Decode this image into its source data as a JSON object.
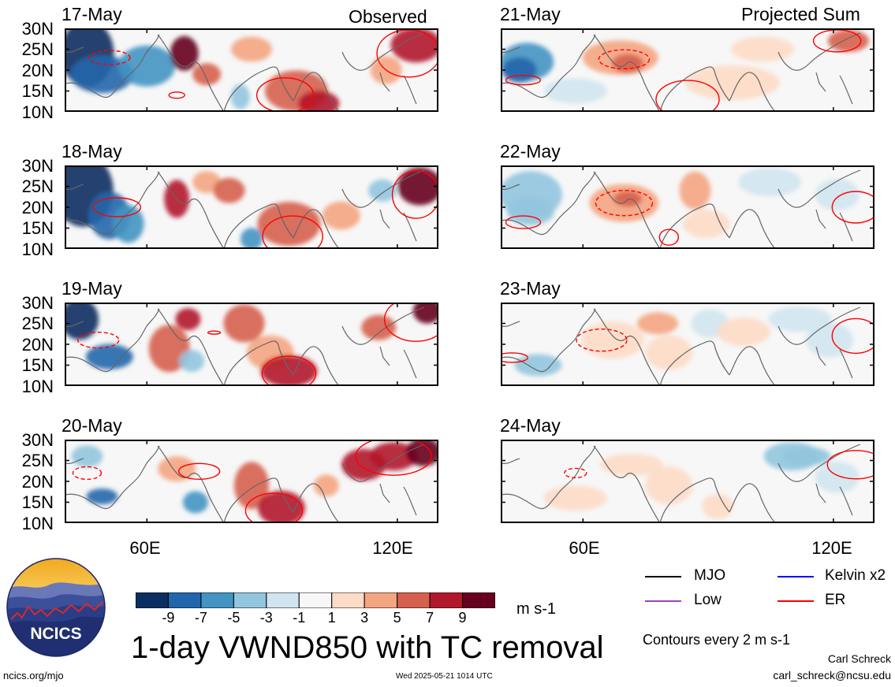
{
  "panel_titles": {
    "observed": "Observed",
    "projected": "Projected Sum"
  },
  "lat_labels": [
    "30N",
    "25N",
    "20N",
    "15N",
    "10N"
  ],
  "lon_labels": [
    "60E",
    "120E"
  ],
  "panels": [
    {
      "date": "17-May",
      "kind": "observed"
    },
    {
      "date": "18-May",
      "kind": "observed"
    },
    {
      "date": "19-May",
      "kind": "observed"
    },
    {
      "date": "20-May",
      "kind": "observed"
    },
    {
      "date": "21-May",
      "kind": "projected"
    },
    {
      "date": "22-May",
      "kind": "projected"
    },
    {
      "date": "23-May",
      "kind": "projected"
    },
    {
      "date": "24-May",
      "kind": "projected"
    }
  ],
  "colorbar": {
    "ticks": [
      "-9",
      "-7",
      "-5",
      "-3",
      "-1",
      "1",
      "3",
      "5",
      "7",
      "9"
    ],
    "colors": [
      "#0b2f61",
      "#2166ac",
      "#4393c3",
      "#92c5de",
      "#d1e5f0",
      "#f7f7f7",
      "#fddbc7",
      "#f4a582",
      "#d6604d",
      "#b2182b",
      "#67001f"
    ],
    "units": "m s-1"
  },
  "legend": {
    "items": [
      {
        "label": "MJO",
        "color": "#000000"
      },
      {
        "label": "Kelvin x2",
        "color": "#0000ff"
      },
      {
        "label": "Low",
        "color": "#a040c0"
      },
      {
        "label": "ER",
        "color": "#ff0000"
      }
    ],
    "contour_note": "Contours every 2 m s-1"
  },
  "title": "1-day VWND850 with TC removal",
  "footer": {
    "url": "ncics.org/mjo",
    "timestamp": "Wed 2025-05-21 1014 UTC",
    "author": "Carl Schreck",
    "email": "carl_schreck@ncsu.edu"
  },
  "logo": {
    "text": "NCICS"
  },
  "chart_data": {
    "type": "heatmap",
    "variable": "VWND850",
    "units": "m s-1",
    "xlim": [
      "40E",
      "130E"
    ],
    "ylim": [
      "10N",
      "30N"
    ],
    "x_ticks": [
      "60E",
      "120E"
    ],
    "y_ticks": [
      "10N",
      "15N",
      "20N",
      "25N",
      "30N"
    ],
    "color_levels": [
      -9,
      -7,
      -5,
      -3,
      -1,
      1,
      3,
      5,
      7,
      9
    ],
    "contour_interval": 2
  }
}
